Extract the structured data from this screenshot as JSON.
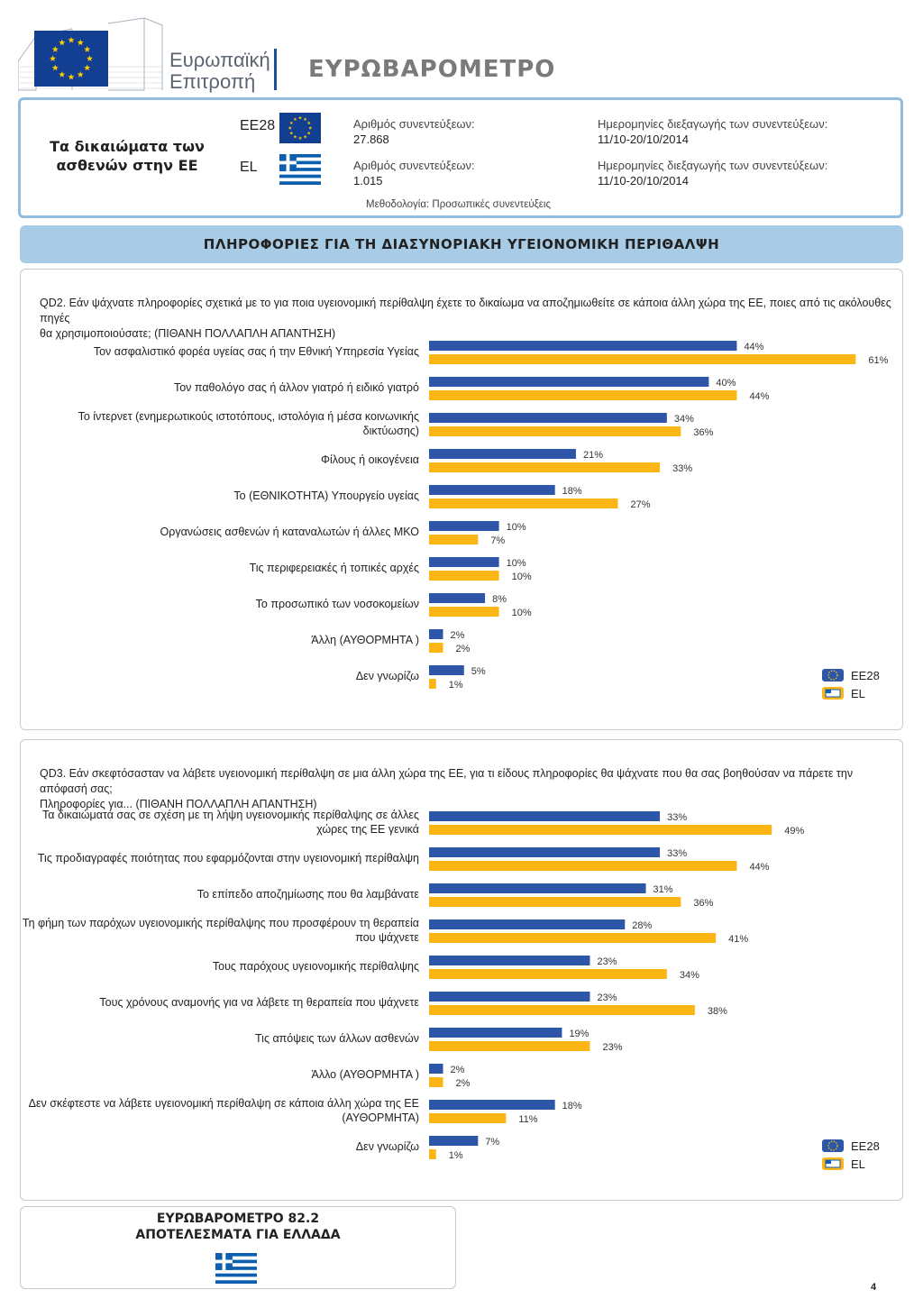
{
  "header": {
    "logo_line1": "Ευρωπαϊκή",
    "logo_line2": "Επιτροπή",
    "title": "ΕΥΡΩΒΑΡΟΜΕΤΡΟ"
  },
  "info": {
    "topic_line1": "Τα δικαιώματα των",
    "topic_line2": "ασθενών στην ΕΕ",
    "rows": [
      {
        "code": "ΕΕ28",
        "interviews_label": "Αριθμός συνεντεύξεων:",
        "interviews": "27.868",
        "dates_label": "Ημερομηνίες διεξαγωγής των συνεντεύξεων:",
        "dates": "11/10-20/10/2014"
      },
      {
        "code": "EL",
        "interviews_label": "Αριθμός συνεντεύξεων:",
        "interviews": "1.015",
        "dates_label": "Ημερομηνίες διεξαγωγής των συνεντεύξεων:",
        "dates": "11/10-20/10/2014"
      }
    ],
    "methodology": "Μεθοδολογία: Προσωπικές συνεντεύξεις"
  },
  "section_title": "ΠΛΗΡΟΦΟΡΙΕΣ ΓΙΑ ΤΗ ΔΙΑΣΥΝΟΡΙΑΚΗ ΥΓΕΙΟΝΟΜΙΚΗ ΠΕΡΙΘΑΛΨΗ",
  "colors": {
    "eu": "#2e56a8",
    "el": "#fbb515",
    "eu_flag": "#123f92",
    "gr_flag": "#0d5eaf"
  },
  "chart_data": [
    {
      "type": "bar",
      "orientation": "horizontal",
      "title": "",
      "question_line1": "QD2. Εάν ψάχνατε πληροφορίες σχετικά με το για ποια υγειονομική περίθαλψη έχετε το δικαίωμα να αποζημιωθείτε σε κάποια άλλη χώρα της ΕΕ, ποιες από τις ακόλουθες πηγές",
      "question_line2": "θα χρησιμοποιούσατε; (ΠΙΘΑΝΗ ΠΟΛΛΑΠΛΗ ΑΠΑΝΤΗΣΗ)",
      "xlim": [
        0,
        100
      ],
      "legend": [
        "ΕΕ28",
        "EL"
      ],
      "legend_position": "bottom-right",
      "categories": [
        [
          "Τον ασφαλιστικό φορέα υγείας σας ή την Εθνική Υπηρεσία Υγείας"
        ],
        [
          "Τον παθολόγο σας ή άλλον γιατρό ή ειδικό γιατρό"
        ],
        [
          "Το ίντερνετ (ενημερωτικούς ιστοτόπους, ιστολόγια ή μέσα κοινωνικής",
          "δικτύωσης)"
        ],
        [
          "Φίλους ή οικογένεια"
        ],
        [
          "Το (ΕΘΝΙΚΟΤΗΤΑ) Υπουργείο υγείας"
        ],
        [
          "Οργανώσεις ασθενών ή καταναλωτών ή άλλες ΜΚΟ"
        ],
        [
          "Τις περιφερειακές ή τοπικές αρχές"
        ],
        [
          "Το προσωπικό των νοσοκομείων"
        ],
        [
          "Άλλη (ΑΥΘΟΡΜΗΤΑ )"
        ],
        [
          "Δεν γνωρίζω"
        ]
      ],
      "series": [
        {
          "name": "ΕΕ28",
          "values": [
            44,
            40,
            34,
            21,
            18,
            10,
            10,
            8,
            2,
            5
          ]
        },
        {
          "name": "EL",
          "values": [
            61,
            44,
            36,
            33,
            27,
            7,
            10,
            10,
            2,
            1
          ]
        }
      ]
    },
    {
      "type": "bar",
      "orientation": "horizontal",
      "title": "",
      "question_line1": "QD3. Εάν σκεφτόσασταν να λάβετε υγειονομική περίθαλψη σε μια άλλη χώρα της ΕΕ, για τι είδους πληροφορίες θα ψάχνατε που θα σας βοηθούσαν να πάρετε την απόφασή σας;",
      "question_line2": "Πληροφορίες για... (ΠΙΘΑΝΗ ΠΟΛΛΑΠΛΗ ΑΠΑΝΤΗΣΗ)",
      "xlim": [
        0,
        100
      ],
      "legend": [
        "ΕΕ28",
        "EL"
      ],
      "legend_position": "bottom-right",
      "categories": [
        [
          "Τα δικαιώματά σας σε σχέση με τη λήψη υγειονομικής περίθαλψης σε άλλες",
          "χώρες της ΕΕ γενικά"
        ],
        [
          "Τις προδιαγραφές ποιότητας που εφαρμόζονται στην υγειονομική περίθαλψη"
        ],
        [
          "Το επίπεδο αποζημίωσης που θα λαμβάνατε"
        ],
        [
          "Τη φήμη των παρόχων υγειονομικής περίθαλψης που προσφέρουν τη θεραπεία",
          "που ψάχνετε"
        ],
        [
          "Τους παρόχους υγειονομικής περίθαλψης"
        ],
        [
          "Τους χρόνους αναμονής για να λάβετε τη θεραπεία που ψάχνετε"
        ],
        [
          "Τις απόψεις των άλλων ασθενών"
        ],
        [
          "Άλλο (ΑΥΘΟΡΜΗΤΑ )"
        ],
        [
          "Δεν σκέφτεστε να λάβετε υγειονομική περίθαλψη σε κάποια άλλη χώρα της ΕΕ",
          "(ΑΥΘΟΡΜΗΤΑ)"
        ],
        [
          "Δεν γνωρίζω"
        ]
      ],
      "series": [
        {
          "name": "ΕΕ28",
          "values": [
            33,
            33,
            31,
            28,
            23,
            23,
            19,
            2,
            18,
            7
          ]
        },
        {
          "name": "EL",
          "values": [
            49,
            44,
            36,
            41,
            34,
            38,
            23,
            2,
            11,
            1
          ]
        }
      ]
    }
  ],
  "footer": {
    "line1": "ΕΥΡΩΒΑΡΟΜΕΤΡΟ 82.2",
    "line2": "ΑΠΟΤΕΛΕΣΜΑΤΑ ΓΙΑ ΕΛΛΑΔΑ",
    "page_number": "4"
  }
}
